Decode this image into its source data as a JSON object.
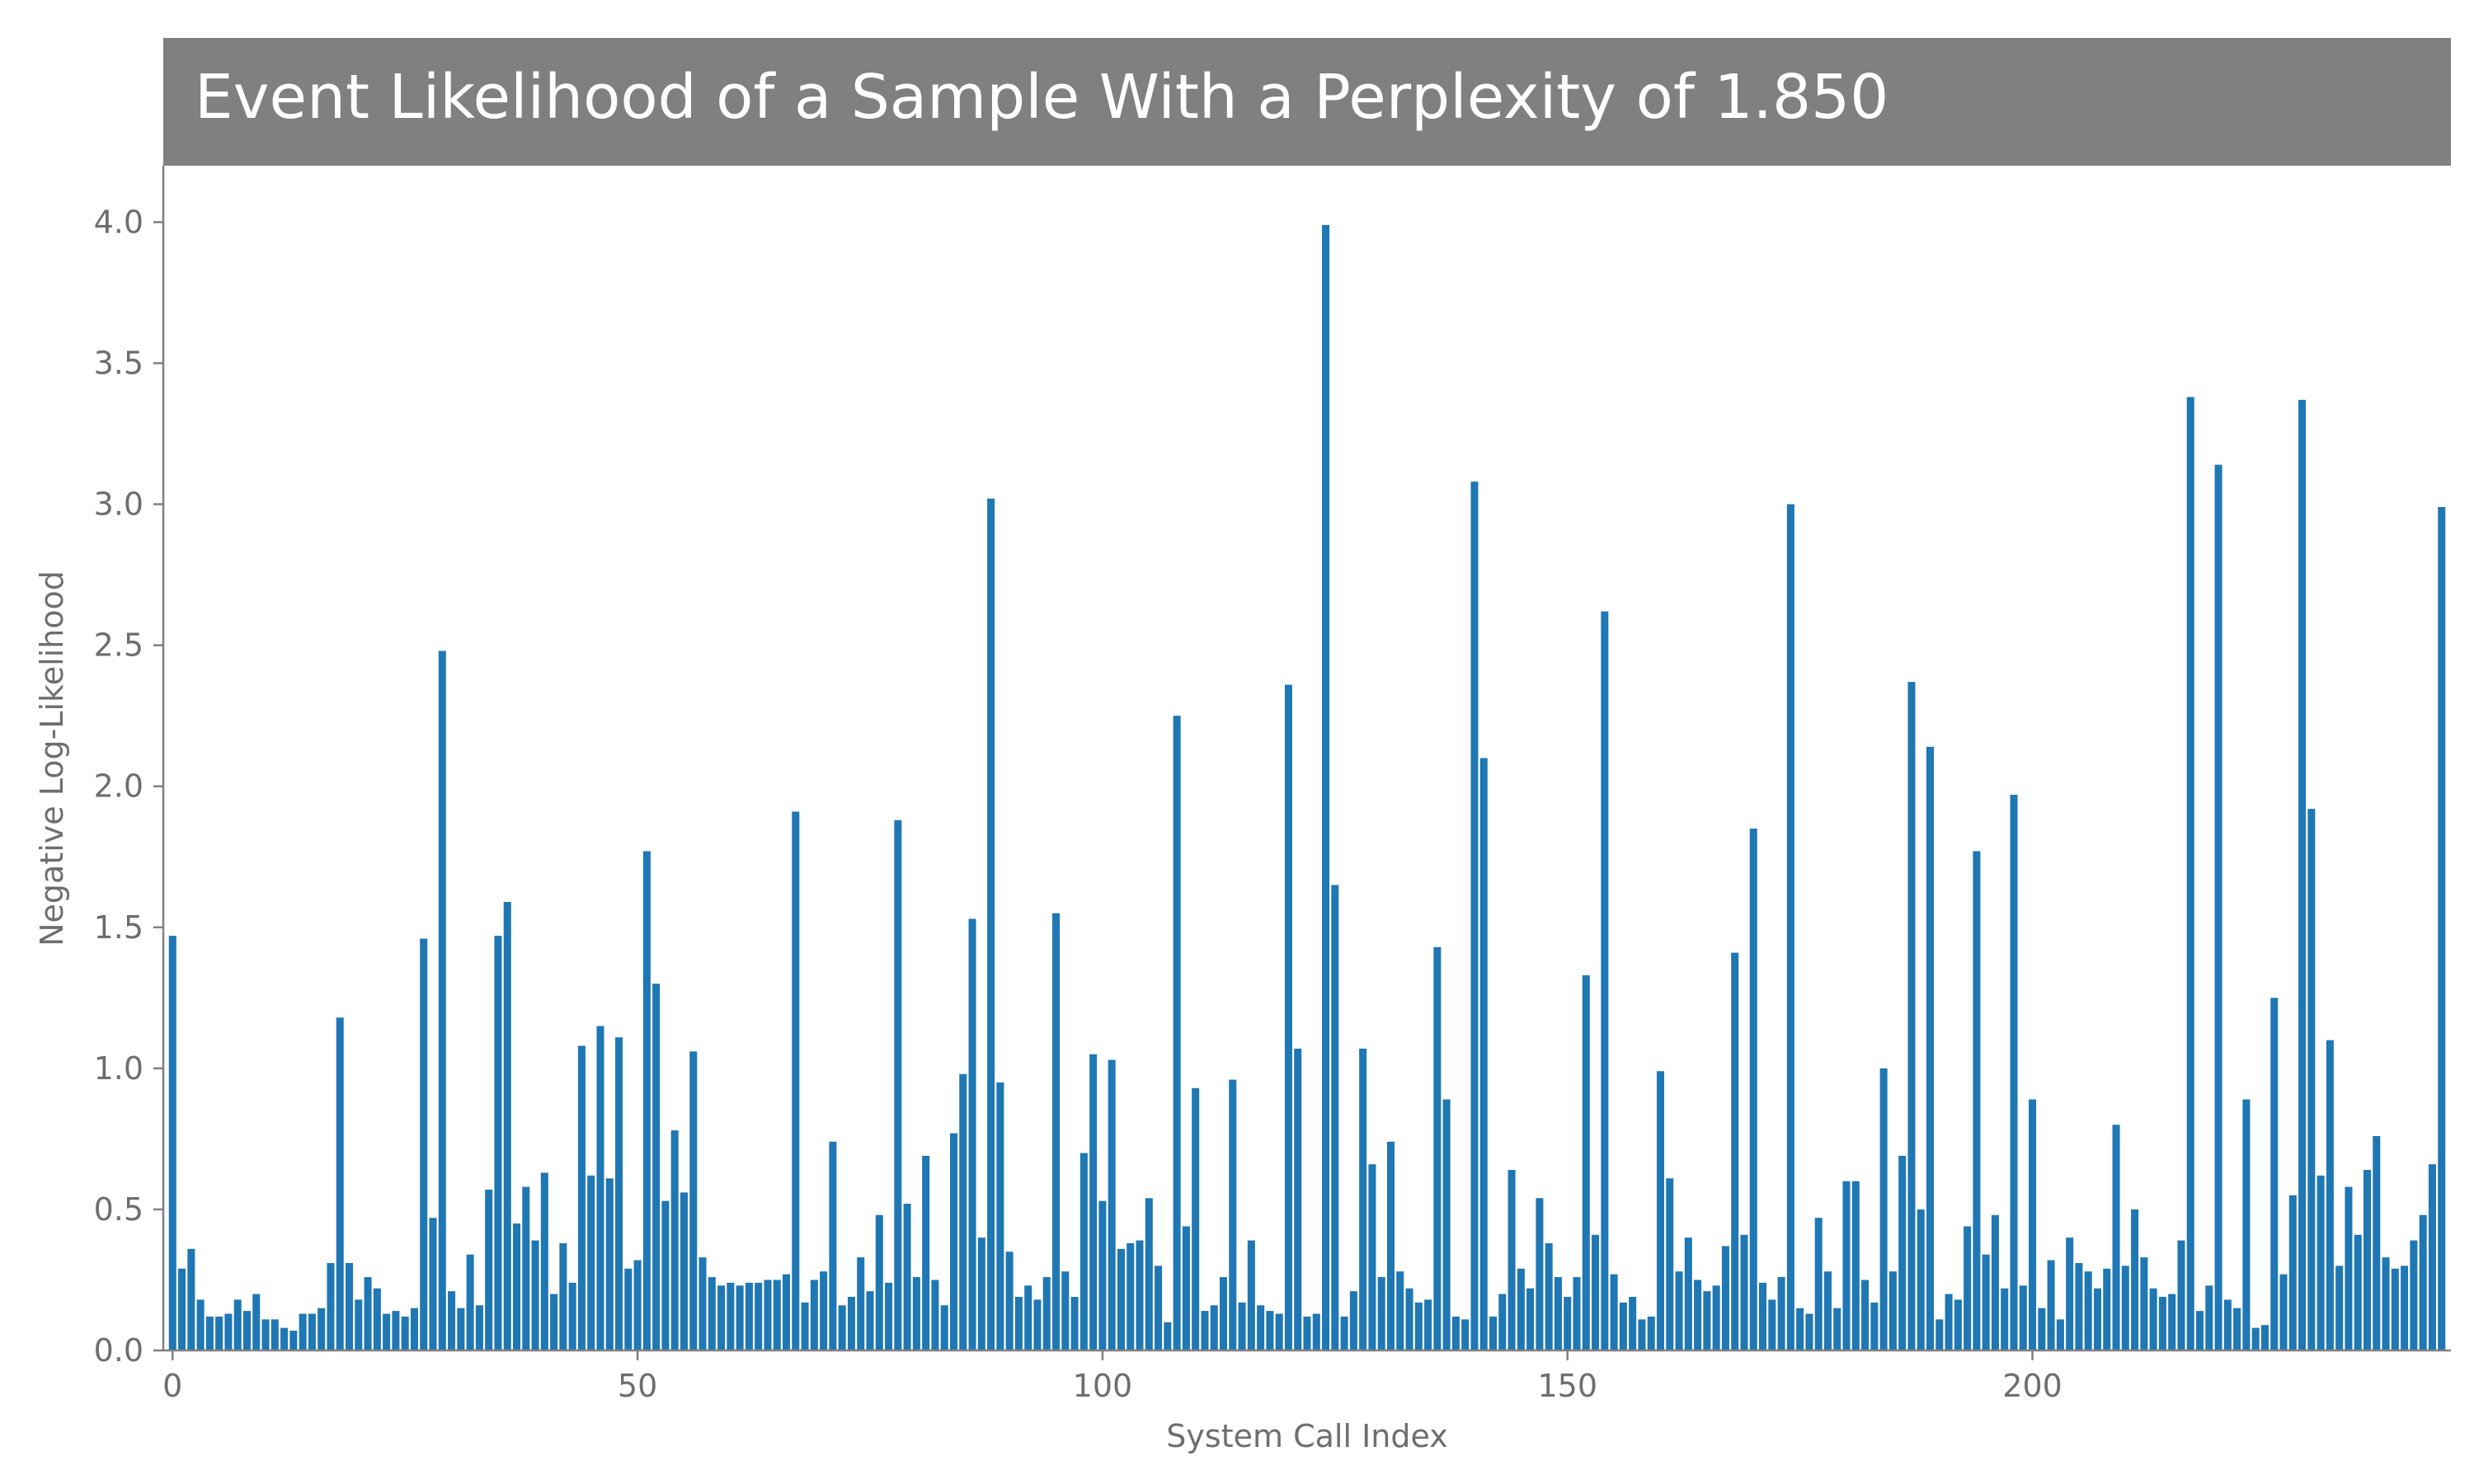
{
  "chart_data": {
    "type": "bar",
    "title": "Event Likelihood of a Sample With a Perplexity of 1.850",
    "xlabel": "System Call Index",
    "ylabel": "Negative Log-Likelihood",
    "xlim": [
      -1,
      245
    ],
    "ylim": [
      0,
      4.2
    ],
    "xticks": [
      0,
      50,
      100,
      150,
      200
    ],
    "yticks": [
      0.0,
      0.5,
      1.0,
      1.5,
      2.0,
      2.5,
      3.0,
      3.5,
      4.0
    ],
    "grid": false,
    "bar_color": "#1f77b4",
    "title_bg": "#808080",
    "axis_color": "#808080",
    "values": [
      1.47,
      0.29,
      0.36,
      0.18,
      0.12,
      0.12,
      0.13,
      0.18,
      0.14,
      0.2,
      0.11,
      0.11,
      0.08,
      0.07,
      0.13,
      0.13,
      0.15,
      0.31,
      1.18,
      0.31,
      0.18,
      0.26,
      0.22,
      0.13,
      0.14,
      0.12,
      0.15,
      1.46,
      0.47,
      2.48,
      0.21,
      0.15,
      0.34,
      0.16,
      0.57,
      1.47,
      1.59,
      0.45,
      0.58,
      0.39,
      0.63,
      0.2,
      0.38,
      0.24,
      1.08,
      0.62,
      1.15,
      0.61,
      1.11,
      0.29,
      0.32,
      1.77,
      1.3,
      0.53,
      0.78,
      0.56,
      1.06,
      0.33,
      0.26,
      0.23,
      0.24,
      0.23,
      0.24,
      0.24,
      0.25,
      0.25,
      0.27,
      1.91,
      0.17,
      0.25,
      0.28,
      0.74,
      0.16,
      0.19,
      0.33,
      0.21,
      0.48,
      0.24,
      1.88,
      0.52,
      0.26,
      0.69,
      0.25,
      0.16,
      0.77,
      0.98,
      1.53,
      0.4,
      3.02,
      0.95,
      0.35,
      0.19,
      0.23,
      0.18,
      0.26,
      1.55,
      0.28,
      0.19,
      0.7,
      1.05,
      0.53,
      1.03,
      0.36,
      0.38,
      0.39,
      0.54,
      0.3,
      0.1,
      2.25,
      0.44,
      0.93,
      0.14,
      0.16,
      0.26,
      0.96,
      0.17,
      0.39,
      0.16,
      0.14,
      0.13,
      2.36,
      1.07,
      0.12,
      0.13,
      3.99,
      1.65,
      0.12,
      0.21,
      1.07,
      0.66,
      0.26,
      0.74,
      0.28,
      0.22,
      0.17,
      0.18,
      1.43,
      0.89,
      0.12,
      0.11,
      3.08,
      2.1,
      0.12,
      0.2,
      0.64,
      0.29,
      0.22,
      0.54,
      0.38,
      0.26,
      0.19,
      0.26,
      1.33,
      0.41,
      2.62,
      0.27,
      0.17,
      0.19,
      0.11,
      0.12,
      0.99,
      0.61,
      0.28,
      0.4,
      0.25,
      0.21,
      0.23,
      0.37,
      1.41,
      0.41,
      1.85,
      0.24,
      0.18,
      0.26,
      3.0,
      0.15,
      0.13,
      0.47,
      0.28,
      0.15,
      0.6,
      0.6,
      0.25,
      0.17,
      1.0,
      0.28,
      0.69,
      2.37,
      0.5,
      2.14,
      0.11,
      0.2,
      0.18,
      0.44,
      1.77,
      0.34,
      0.48,
      0.22,
      1.97,
      0.23,
      0.89,
      0.15,
      0.32,
      0.11,
      0.4,
      0.31,
      0.28,
      0.22,
      0.29,
      0.8,
      0.3,
      0.5,
      0.33,
      0.22,
      0.19,
      0.2,
      0.39,
      3.38,
      0.14,
      0.23,
      3.14,
      0.18,
      0.15,
      0.89,
      0.08,
      0.09,
      1.25,
      0.27,
      0.55,
      3.37,
      1.92,
      0.62,
      1.1,
      0.3,
      0.58,
      0.41,
      0.64,
      0.76,
      0.33,
      0.29,
      0.3,
      0.39,
      0.48,
      0.66,
      2.99
    ]
  }
}
